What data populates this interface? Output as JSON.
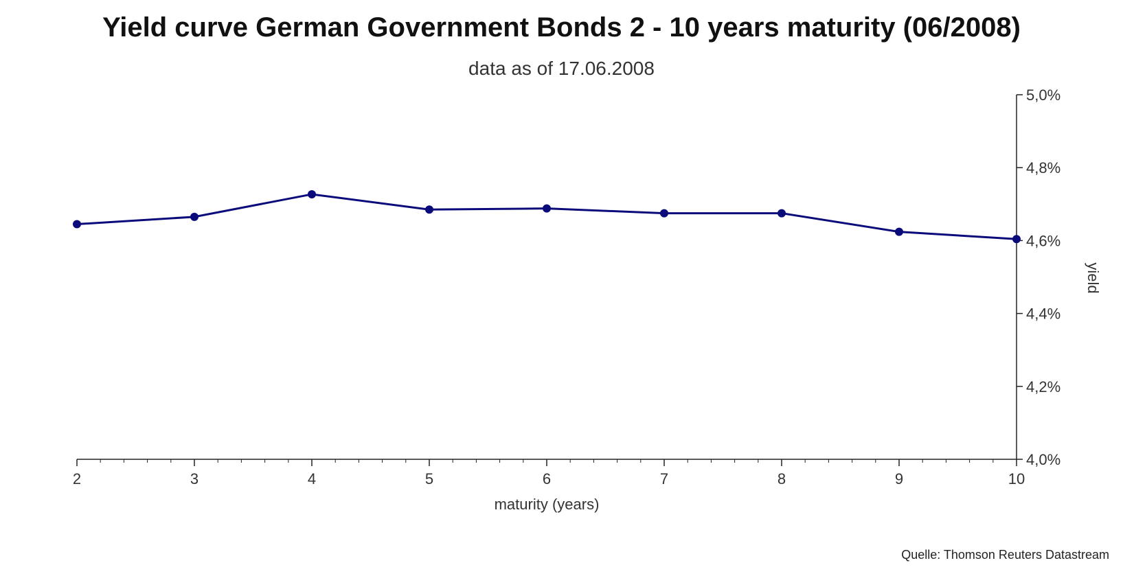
{
  "chart_data": {
    "type": "line",
    "title": "Yield curve German Government Bonds 2 - 10 years maturity (06/2008)",
    "subtitle": "data as of 17.06.2008",
    "xlabel": "maturity (years)",
    "ylabel": "yield",
    "source": "Quelle: Thomson Reuters Datastream",
    "x": [
      2,
      3,
      4,
      5,
      6,
      7,
      8,
      9,
      10
    ],
    "x_ticks": [
      "2",
      "3",
      "4",
      "5",
      "6",
      "7",
      "8",
      "9",
      "10"
    ],
    "y_ticks": [
      "4,0%",
      "4,2%",
      "4,4%",
      "4,6%",
      "4,8%",
      "5,0%"
    ],
    "y_tick_values": [
      4.0,
      4.2,
      4.4,
      4.6,
      4.8,
      5.0
    ],
    "xlim": [
      2,
      10
    ],
    "ylim": [
      4.0,
      5.0
    ],
    "y_axis_side": "right",
    "grid": false,
    "series": [
      {
        "values": [
          4.645,
          4.665,
          4.727,
          4.685,
          4.688,
          4.675,
          4.675,
          4.624,
          4.604
        ]
      }
    ],
    "colors": {
      "line": "#0a0a7a",
      "axis": "#222222"
    }
  }
}
